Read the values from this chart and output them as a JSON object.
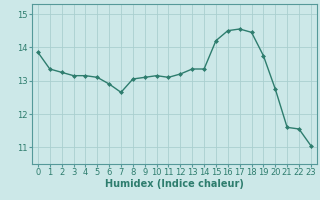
{
  "x": [
    0,
    1,
    2,
    3,
    4,
    5,
    6,
    7,
    8,
    9,
    10,
    11,
    12,
    13,
    14,
    15,
    16,
    17,
    18,
    19,
    20,
    21,
    22,
    23
  ],
  "y": [
    13.85,
    13.35,
    13.25,
    13.15,
    13.15,
    13.1,
    12.9,
    12.65,
    13.05,
    13.1,
    13.15,
    13.1,
    13.2,
    13.35,
    13.35,
    14.2,
    14.5,
    14.55,
    14.45,
    13.75,
    12.75,
    11.6,
    11.55,
    11.05
  ],
  "line_color": "#2e7d6e",
  "marker": "D",
  "markersize": 2.0,
  "linewidth": 1.0,
  "background_color": "#cce8e8",
  "grid_color": "#aacfcf",
  "xlabel": "Humidex (Indice chaleur)",
  "xlabel_fontsize": 7,
  "ylim": [
    10.5,
    15.3
  ],
  "xlim": [
    -0.5,
    23.5
  ],
  "yticks": [
    11,
    12,
    13,
    14,
    15
  ],
  "xticks": [
    0,
    1,
    2,
    3,
    4,
    5,
    6,
    7,
    8,
    9,
    10,
    11,
    12,
    13,
    14,
    15,
    16,
    17,
    18,
    19,
    20,
    21,
    22,
    23
  ],
  "tick_fontsize": 6,
  "spine_color": "#559999"
}
